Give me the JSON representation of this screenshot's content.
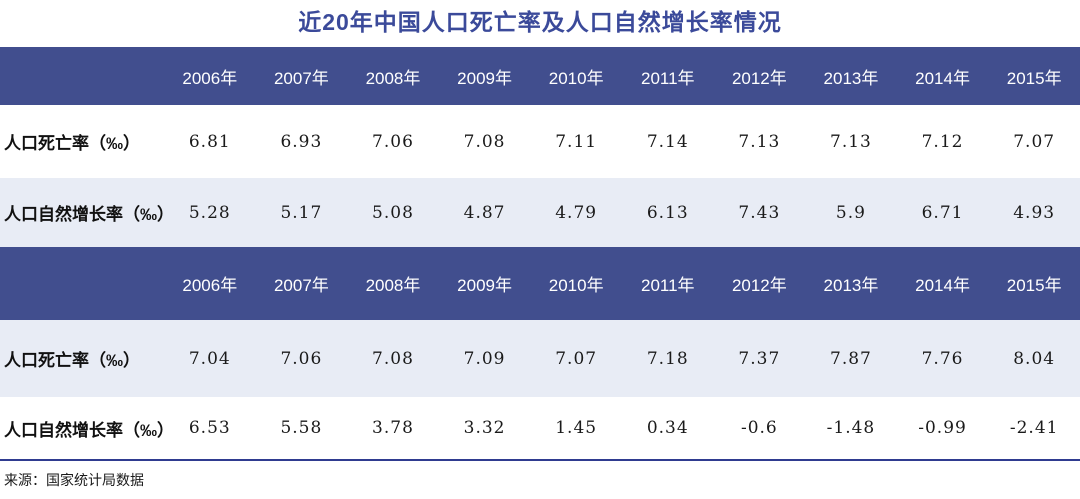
{
  "title": "近20年中国人口死亡率及人口自然增长率情况",
  "source_note": "来源：国家统计局数据",
  "colors": {
    "title_text": "#3B4A9A",
    "header_bg": "#414E8E",
    "header_text": "#FFFFFF",
    "alt_row_bg": "#E8ECF5",
    "divider": "#2F3B90",
    "value_text": "#1A1A1A"
  },
  "chart_data": [
    {
      "type": "table",
      "title": "近20年中国人口死亡率及人口自然增长率情况",
      "categories": [
        "2006年",
        "2007年",
        "2008年",
        "2009年",
        "2010年",
        "2011年",
        "2012年",
        "2013年",
        "2014年",
        "2015年"
      ],
      "series": [
        {
          "name": "人口死亡率（‰）",
          "values": [
            6.81,
            6.93,
            7.06,
            7.08,
            7.11,
            7.14,
            7.13,
            7.13,
            7.12,
            7.07
          ]
        },
        {
          "name": "人口自然增长率（‰）",
          "values": [
            5.28,
            5.17,
            5.08,
            4.87,
            4.79,
            6.13,
            7.43,
            5.9,
            6.71,
            4.93
          ]
        }
      ]
    },
    {
      "type": "table",
      "categories": [
        "2006年",
        "2007年",
        "2008年",
        "2009年",
        "2010年",
        "2011年",
        "2012年",
        "2013年",
        "2014年",
        "2015年"
      ],
      "series": [
        {
          "name": "人口死亡率（‰）",
          "values": [
            7.04,
            7.06,
            7.08,
            7.09,
            7.07,
            7.18,
            7.37,
            7.87,
            7.76,
            8.04
          ]
        },
        {
          "name": "人口自然增长率（‰）",
          "values": [
            6.53,
            5.58,
            3.78,
            3.32,
            1.45,
            0.34,
            -0.6,
            -1.48,
            -0.99,
            -2.41
          ]
        }
      ]
    }
  ]
}
